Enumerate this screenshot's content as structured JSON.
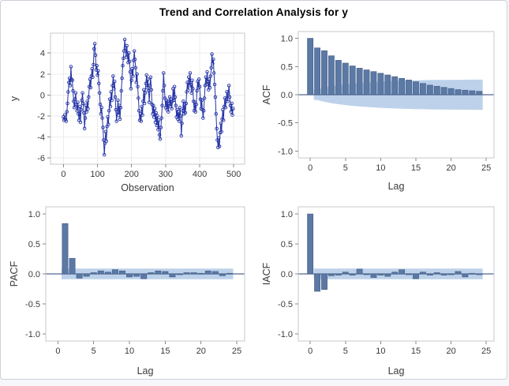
{
  "title": "Trend and Correlation Analysis for y",
  "colors": {
    "series_line": "#2433a6",
    "bar_fill": "#5b79a4",
    "bar_stroke": "#47628c",
    "confidence_band": "#bdd2ea",
    "zero_line": "#53688f",
    "frame": "#c6cace",
    "grid": "#ececec",
    "tick_mark": "#8a8a8a",
    "tick_text": "#3a3a3a",
    "axis_label_text": "#3a3a3a",
    "title_text": "#000000"
  },
  "chart_data": [
    {
      "name": "series",
      "type": "line",
      "title": "",
      "xlabel": "Observation",
      "ylabel": "y",
      "xlim": [
        -38,
        532
      ],
      "ylim": [
        -6.6,
        5.9
      ],
      "xticks": [
        0,
        100,
        200,
        300,
        400,
        500
      ],
      "xtick_labels": [
        "0",
        "100",
        "200",
        "300",
        "400",
        "500"
      ],
      "yticks": [
        4,
        2,
        0,
        -2,
        -4,
        -6
      ],
      "ytick_labels": [
        "4",
        "2",
        "0",
        "-2",
        "-4",
        "-6"
      ],
      "grid": true,
      "zero_line": false,
      "marker": "open-circle",
      "x_start": 0,
      "x_step": 2,
      "values": [
        -2.1,
        -2.4,
        -1.9,
        -2.3,
        -2.5,
        -1.6,
        -0.8,
        0.3,
        1.2,
        1.6,
        0.9,
        2.7,
        1.5,
        1.4,
        0.4,
        -0.6,
        -1.2,
        -0.4,
        0.2,
        -0.9,
        -1.5,
        -0.7,
        -1.8,
        -2.4,
        -1.1,
        -2.6,
        -1.4,
        -0.5,
        0.2,
        -0.8,
        -1.7,
        -3.2,
        -2.2,
        -1.0,
        -1.6,
        -0.6,
        -1.3,
        -0.2,
        0.8,
        1.5,
        0.7,
        1.8,
        2.5,
        1.7,
        2.9,
        4.4,
        4.9,
        3.8,
        2.4,
        2.8,
        1.9,
        2.3,
        1.1,
        0.2,
        -0.9,
        -1.8,
        -1.2,
        -2.2,
        -3.1,
        -4.3,
        -5.7,
        -4.6,
        -3.5,
        -4.4,
        -3.0,
        -2.1,
        -2.8,
        -1.5,
        -0.4,
        -1.1,
        0.3,
        -0.5,
        0.9,
        1.8,
        0.6,
        1.3,
        -0.2,
        -1.4,
        -2.5,
        -1.6,
        -0.5,
        -1.9,
        -1.0,
        -2.3,
        -1.2,
        0.4,
        1.6,
        2.8,
        3.5,
        4.2,
        5.3,
        4.5,
        3.6,
        4.7,
        3.9,
        3.1,
        4.0,
        3.2,
        2.2,
        0.6,
        1.4,
        2.5,
        1.8,
        3.3,
        4.2,
        3.4,
        2.6,
        1.2,
        2.0,
        0.8,
        -0.3,
        -1.5,
        -2.4,
        -1.8,
        -2.5,
        -1.1,
        -1.9,
        -0.6,
        0.5,
        -0.8,
        0.2,
        1.1,
        1.9,
        0.7,
        1.5,
        0.4,
        -0.7,
        0.9,
        1.7,
        0.5,
        -0.9,
        -1.8,
        -1.0,
        -2.1,
        -1.3,
        -2.6,
        -1.7,
        -2.9,
        -2.0,
        -3.3,
        -2.4,
        -3.8,
        -4.2,
        -3.1,
        -2.2,
        -1.0,
        0.4,
        2.1,
        0.9,
        -0.3,
        -1.2,
        -0.5,
        -1.4,
        -0.6,
        -1.6,
        -0.8,
        -0.2,
        -1.1,
        -0.4,
        -1.3,
        -0.6,
        0.6,
        -0.5,
        0.8,
        -0.2,
        -1.0,
        -2.1,
        -1.4,
        -2.3,
        -1.6,
        -2.5,
        -1.2,
        -2.0,
        -3.9,
        -2.7,
        -1.5,
        -0.6,
        -1.8,
        -0.9,
        -1.7,
        -0.8,
        0.3,
        1.2,
        0.5,
        1.7,
        0.9,
        2.1,
        1.0,
        0.2,
        1.4,
        0.6,
        -0.6,
        -1.5,
        -0.7,
        -1.6,
        -0.9,
        0.4,
        1.3,
        0.7,
        1.5,
        0.8,
        -0.4,
        -1.3,
        -0.5,
        -1.4,
        -2.2,
        -1.5,
        -0.3,
        0.9,
        1.7,
        1.0,
        2.2,
        1.3,
        0.5,
        1.5,
        0.7,
        1.8,
        2.6,
        3.9,
        3.0,
        3.4,
        2.1,
        1.0,
        -0.2,
        -1.8,
        -3.2,
        -4.3,
        -5.0,
        -4.1,
        -4.9,
        -3.6,
        -2.7,
        -3.5,
        -2.3,
        -1.4,
        -2.4,
        -1.1,
        -0.3,
        -1.2,
        -0.4,
        0.3,
        -0.6,
        0.2,
        0.9,
        -0.2,
        -1.0,
        -1.6,
        -0.8,
        -1.9,
        -1.3
      ]
    },
    {
      "name": "acf",
      "type": "bar",
      "title": "",
      "xlabel": "Lag",
      "ylabel": "ACF",
      "xlim": [
        -1.7,
        26.1
      ],
      "ylim": [
        -1.12,
        1.12
      ],
      "xticks": [
        0,
        5,
        10,
        15,
        20,
        25
      ],
      "xtick_labels": [
        "0",
        "5",
        "10",
        "15",
        "20",
        "25"
      ],
      "yticks": [
        1,
        0.5,
        0,
        -0.5,
        -1
      ],
      "ytick_labels": [
        "1.0",
        "0.5",
        "0.0",
        "-0.5",
        "-1.0"
      ],
      "grid": false,
      "zero_line": true,
      "lag_start": 0,
      "values": [
        1.0,
        0.83,
        0.78,
        0.69,
        0.61,
        0.56,
        0.51,
        0.47,
        0.44,
        0.41,
        0.38,
        0.35,
        0.32,
        0.29,
        0.26,
        0.23,
        0.2,
        0.17,
        0.15,
        0.13,
        0.11,
        0.09,
        0.08,
        0.07,
        0.06
      ],
      "band": {
        "type": "funnel",
        "x": [
          0.5,
          1,
          2,
          3,
          4,
          5,
          6,
          7,
          8,
          9,
          10,
          11,
          12,
          13,
          14,
          15,
          16,
          17,
          18,
          19,
          20,
          21,
          22,
          23,
          24,
          24.5
        ],
        "hw": [
          0.095,
          0.095,
          0.125,
          0.15,
          0.168,
          0.184,
          0.197,
          0.208,
          0.217,
          0.225,
          0.232,
          0.238,
          0.243,
          0.248,
          0.252,
          0.255,
          0.258,
          0.26,
          0.262,
          0.263,
          0.264,
          0.265,
          0.266,
          0.267,
          0.268,
          0.268
        ]
      }
    },
    {
      "name": "pacf",
      "type": "bar",
      "title": "",
      "xlabel": "Lag",
      "ylabel": "PACF",
      "xlim": [
        -1.7,
        26.1
      ],
      "ylim": [
        -1.12,
        1.12
      ],
      "xticks": [
        0,
        5,
        10,
        15,
        20,
        25
      ],
      "xtick_labels": [
        "0",
        "5",
        "10",
        "15",
        "20",
        "25"
      ],
      "yticks": [
        1,
        0.5,
        0,
        -0.5,
        -1
      ],
      "ytick_labels": [
        "1.0",
        "0.5",
        "0.0",
        "-0.5",
        "-1.0"
      ],
      "grid": false,
      "zero_line": true,
      "lag_start": 1,
      "values": [
        0.84,
        0.26,
        -0.07,
        -0.04,
        0.02,
        0.05,
        0.03,
        0.07,
        0.05,
        -0.05,
        -0.04,
        -0.08,
        0.02,
        0.05,
        0.04,
        -0.05,
        -0.01,
        0.02,
        0.02,
        0.01,
        0.05,
        0.04,
        -0.03,
        0.01
      ],
      "band": {
        "type": "flat",
        "x0": 0.5,
        "x1": 24.5,
        "hw": 0.089
      }
    },
    {
      "name": "iacf",
      "type": "bar",
      "title": "",
      "xlabel": "Lag",
      "ylabel": "IACF",
      "xlim": [
        -1.7,
        26.1
      ],
      "ylim": [
        -1.12,
        1.12
      ],
      "xticks": [
        0,
        5,
        10,
        15,
        20,
        25
      ],
      "xtick_labels": [
        "0",
        "5",
        "10",
        "15",
        "20",
        "25"
      ],
      "yticks": [
        1,
        0.5,
        0,
        -0.5,
        -1
      ],
      "ytick_labels": [
        "1.0",
        "0.5",
        "0.0",
        "-0.5",
        "-1.0"
      ],
      "grid": false,
      "zero_line": true,
      "lag_start": 0,
      "values": [
        1.0,
        -0.29,
        -0.26,
        -0.03,
        -0.02,
        0.03,
        -0.02,
        0.08,
        -0.01,
        -0.06,
        -0.02,
        -0.04,
        0.03,
        0.07,
        -0.01,
        -0.08,
        0.03,
        -0.02,
        0.02,
        -0.02,
        -0.01,
        0.04,
        -0.05,
        0.01,
        -0.01
      ],
      "band": {
        "type": "flat",
        "x0": 0.5,
        "x1": 24.5,
        "hw": 0.089
      }
    }
  ]
}
